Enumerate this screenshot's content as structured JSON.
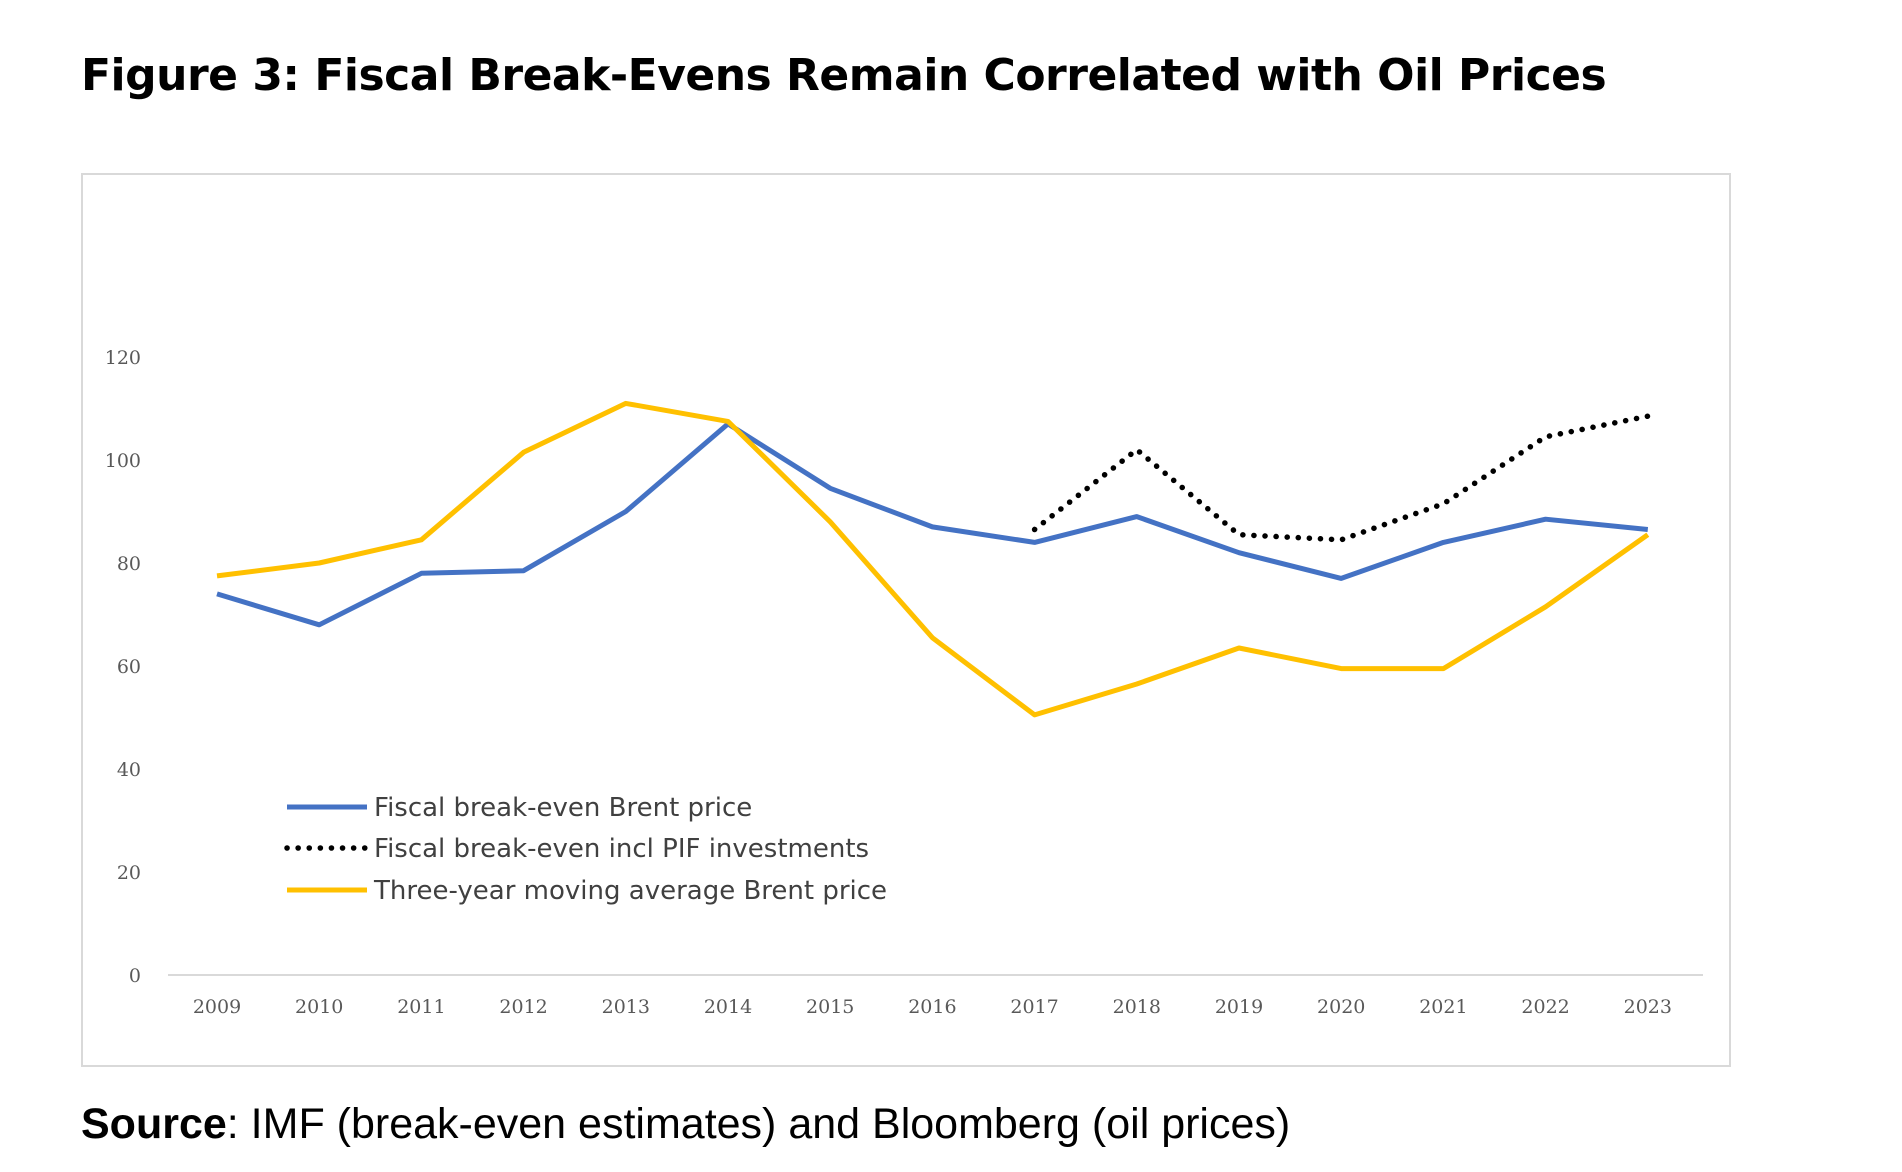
{
  "figure": {
    "title": "Figure 3: Fiscal Break-Evens Remain Correlated with Oil Prices",
    "source_label": "Source",
    "source_text": ": IMF (break-even estimates) and Bloomberg (oil prices)"
  },
  "chart_data": {
    "type": "line",
    "title": "",
    "xlabel": "",
    "ylabel": "",
    "categories": [
      "2009",
      "2010",
      "2011",
      "2012",
      "2013",
      "2014",
      "2015",
      "2016",
      "2017",
      "2018",
      "2019",
      "2020",
      "2021",
      "2022",
      "2023"
    ],
    "ylim": [
      0,
      120
    ],
    "yticks": [
      "0",
      "20",
      "40",
      "60",
      "80",
      "100",
      "120"
    ],
    "grid": false,
    "legend_position": "lower-left",
    "series": [
      {
        "name": "Fiscal break-even Brent price",
        "color": "#4472c4",
        "style": "solid",
        "values": [
          74,
          68,
          78,
          78.5,
          90,
          107,
          94.5,
          87,
          84,
          89,
          82,
          77,
          84,
          88.5,
          86.5
        ]
      },
      {
        "name": "Fiscal break-even incl PIF investments",
        "color": "#000000",
        "style": "dotted",
        "values": [
          null,
          null,
          null,
          null,
          null,
          null,
          null,
          null,
          86.5,
          102,
          85.5,
          84.5,
          91.5,
          104.5,
          108.5
        ]
      },
      {
        "name": "Three-year moving average Brent price",
        "color": "#ffc000",
        "style": "solid",
        "values": [
          77.5,
          80,
          84.5,
          101.5,
          111,
          107.5,
          88,
          65.5,
          50.5,
          56.5,
          63.5,
          59.5,
          59.5,
          71.5,
          85.5
        ]
      }
    ]
  }
}
